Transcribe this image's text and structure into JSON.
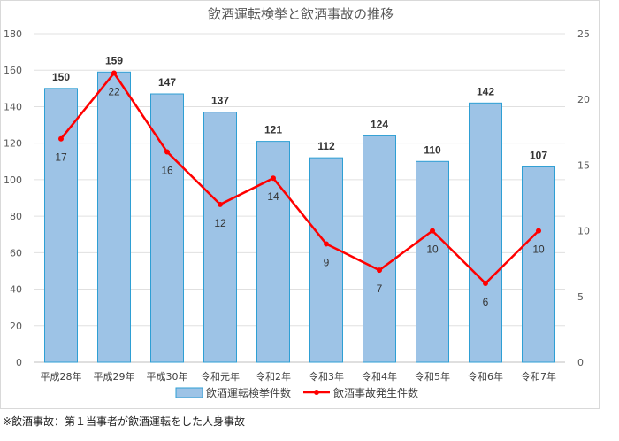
{
  "chart_data": {
    "type": "bar",
    "title": "飲酒運転検挙と飲酒事故の推移",
    "categories": [
      "平成28年",
      "平成29年",
      "平成30年",
      "令和元年",
      "令和2年",
      "令和3年",
      "令和4年",
      "令和5年",
      "令和6年",
      "令和7年"
    ],
    "series": [
      {
        "name": "飲酒運転検挙件数",
        "type": "bar",
        "axis": "left",
        "color": "#9dc3e6",
        "border": "#2e9fd4",
        "values": [
          150,
          159,
          147,
          137,
          121,
          112,
          124,
          110,
          142,
          107
        ]
      },
      {
        "name": "飲酒事故発生件数",
        "type": "line",
        "axis": "right",
        "color": "#ff0000",
        "values": [
          17,
          22,
          16,
          12,
          14,
          9,
          7,
          10,
          6,
          10
        ]
      }
    ],
    "y_left": {
      "min": 0,
      "max": 180,
      "step": 20,
      "ticks": [
        "0",
        "20",
        "40",
        "60",
        "80",
        "100",
        "120",
        "140",
        "160",
        "180"
      ]
    },
    "y_right": {
      "min": 0,
      "max": 25,
      "step": 5,
      "ticks": [
        "0",
        "5",
        "10",
        "15",
        "20",
        "25"
      ]
    },
    "grid": true,
    "legend": "bottom"
  },
  "footnote": "※飲酒事故：第１当事者が飲酒運転をした人身事故"
}
